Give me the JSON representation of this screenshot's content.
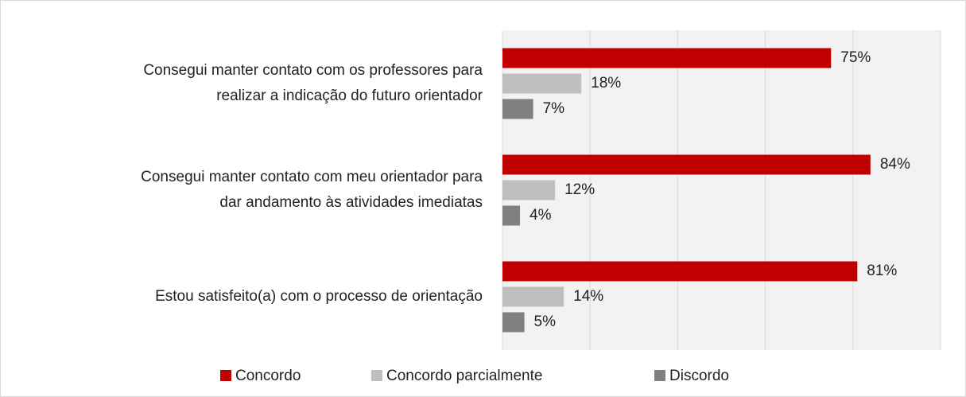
{
  "chart_data": {
    "type": "hbar",
    "categories": [
      [
        "Consegui manter contato com os professores para",
        "realizar a indicação do futuro orientador"
      ],
      [
        "Consegui manter contato com meu orientador para",
        "dar andamento às atividades imediatas"
      ],
      [
        "Estou satisfeito(a) com o processo de orientação"
      ]
    ],
    "series": [
      {
        "name": "Concordo",
        "color": "#c00000",
        "values": [
          75,
          84,
          81
        ],
        "value_labels": [
          "75%",
          "84%",
          "81%"
        ]
      },
      {
        "name": "Concordo parcialmente",
        "color": "#bfbfbf",
        "values": [
          18,
          12,
          14
        ],
        "value_labels": [
          "18%",
          "12%",
          "14%"
        ]
      },
      {
        "name": "Discordo",
        "color": "#808080",
        "values": [
          7,
          4,
          5
        ],
        "value_labels": [
          "7%",
          "4%",
          "5%"
        ]
      }
    ],
    "xlim": [
      0,
      100
    ],
    "xgrid": [
      0,
      20,
      40,
      60,
      80,
      100
    ],
    "legend": "bottom"
  }
}
